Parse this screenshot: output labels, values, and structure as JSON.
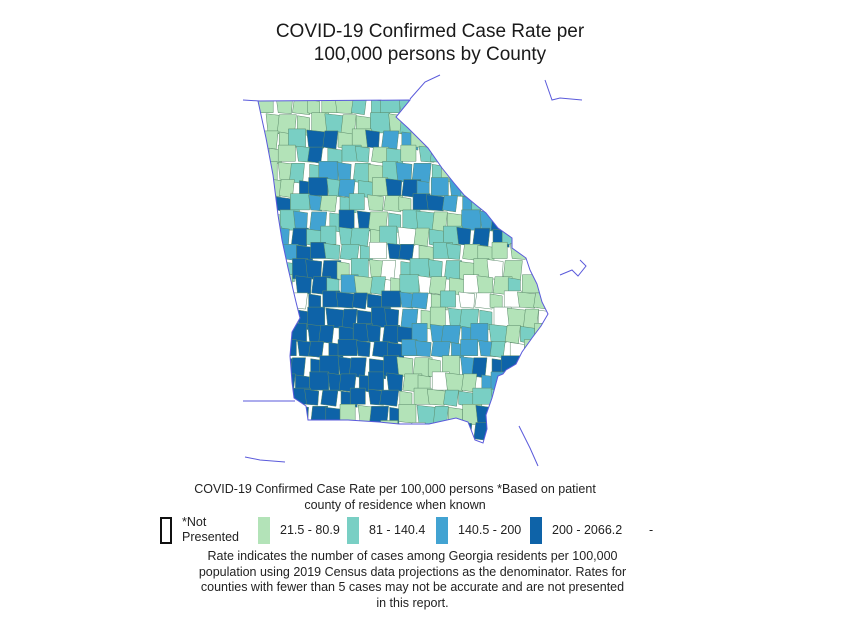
{
  "title": {
    "line1": "COVID-19 Confirmed Case Rate per",
    "line2": "100,000 persons by County"
  },
  "legend": {
    "title_line1": "COVID-19 Confirmed Case Rate per 100,000 persons *Based on patient",
    "title_line2": "county of residence when known",
    "items": [
      {
        "label_line1": "*Not",
        "label_line2": "Presented",
        "color": "#ffffff"
      },
      {
        "label": "21.5 - 80.9",
        "color": "#b3e3b8"
      },
      {
        "label": "81 - 140.4",
        "color": "#79cfc4"
      },
      {
        "label": "140.5 - 200",
        "color": "#42a3d2"
      },
      {
        "label": "200 - 2066.2",
        "color": "#0e63a8"
      }
    ],
    "trailing": "-"
  },
  "note": {
    "line1": "Rate indicates the number of cases among Georgia residents per 100,000",
    "line2": "population using 2019 Census data projections as the denominator. Rates for",
    "line3": "counties with fewer than 5 cases may not be accurate and are not presented",
    "line4": "in this report."
  },
  "colors": {
    "not_presented": "#ffffff",
    "bin1": "#b3e3b8",
    "bin2": "#79cfc4",
    "bin3": "#42a3d2",
    "bin4": "#0e63a8",
    "county_border": "#5b8a6a",
    "state_border": "#5a5adb"
  }
}
